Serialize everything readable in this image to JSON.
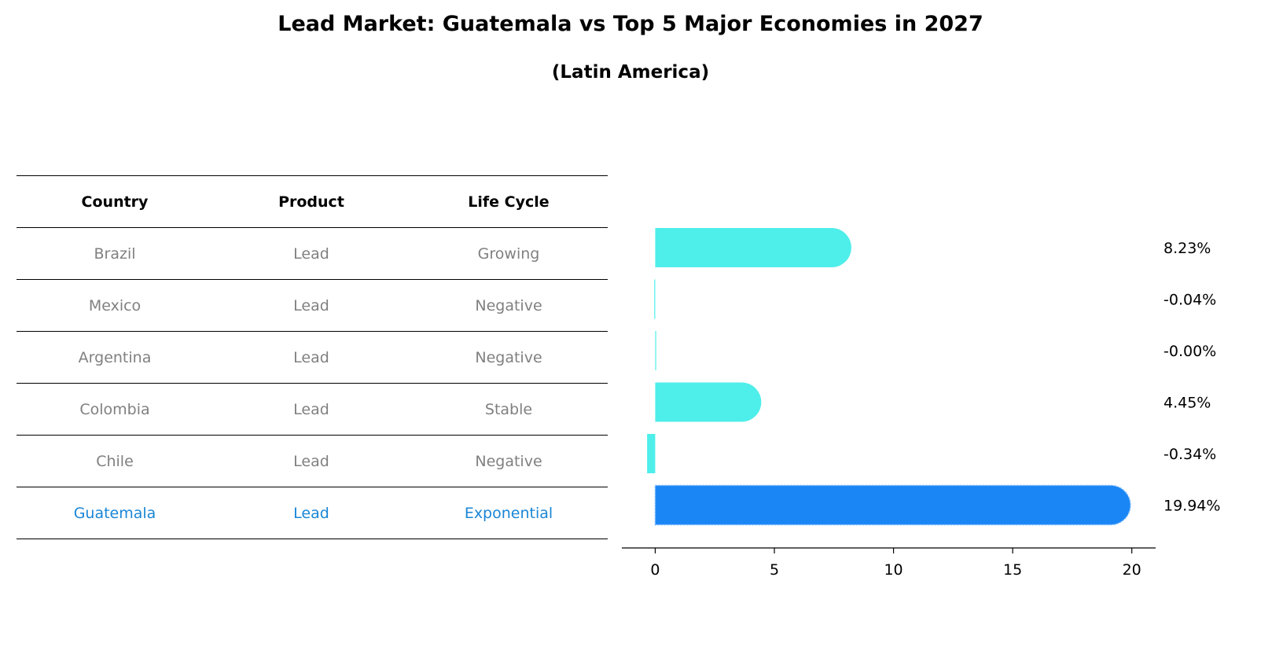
{
  "chart_data": {
    "type": "bar",
    "orientation": "horizontal",
    "title": "Lead Market: Guatemala vs Top 5 Major Economies in 2027",
    "subtitle": "(Latin America)",
    "table": {
      "headers": [
        "Country",
        "Product",
        "Life Cycle"
      ],
      "rows": [
        {
          "country": "Brazil",
          "product": "Lead",
          "life_cycle": "Growing",
          "highlight": false
        },
        {
          "country": "Mexico",
          "product": "Lead",
          "life_cycle": "Negative",
          "highlight": false
        },
        {
          "country": "Argentina",
          "product": "Lead",
          "life_cycle": "Negative",
          "highlight": false
        },
        {
          "country": "Colombia",
          "product": "Lead",
          "life_cycle": "Stable",
          "highlight": false
        },
        {
          "country": "Chile",
          "product": "Lead",
          "life_cycle": "Negative",
          "highlight": false
        },
        {
          "country": "Guatemala",
          "product": "Lead",
          "life_cycle": "Exponential",
          "highlight": true
        }
      ]
    },
    "categories": [
      "Brazil",
      "Mexico",
      "Argentina",
      "Colombia",
      "Chile",
      "Guatemala"
    ],
    "values": [
      8.23,
      -0.04,
      -0.0,
      4.45,
      -0.34,
      19.94
    ],
    "value_labels": [
      "8.23%",
      "-0.04%",
      "-0.00%",
      "4.45%",
      "-0.34%",
      "19.94%"
    ],
    "xlim": [
      -1.4,
      21
    ],
    "xticks": [
      0,
      5,
      10,
      15,
      20
    ],
    "xlabel": "",
    "ylabel": "",
    "grid": false,
    "colors": {
      "bar": "#4eeeea",
      "highlight_bar": "#1a86f5",
      "text_muted": "#808080",
      "text_highlight": "#1a86d6"
    }
  }
}
